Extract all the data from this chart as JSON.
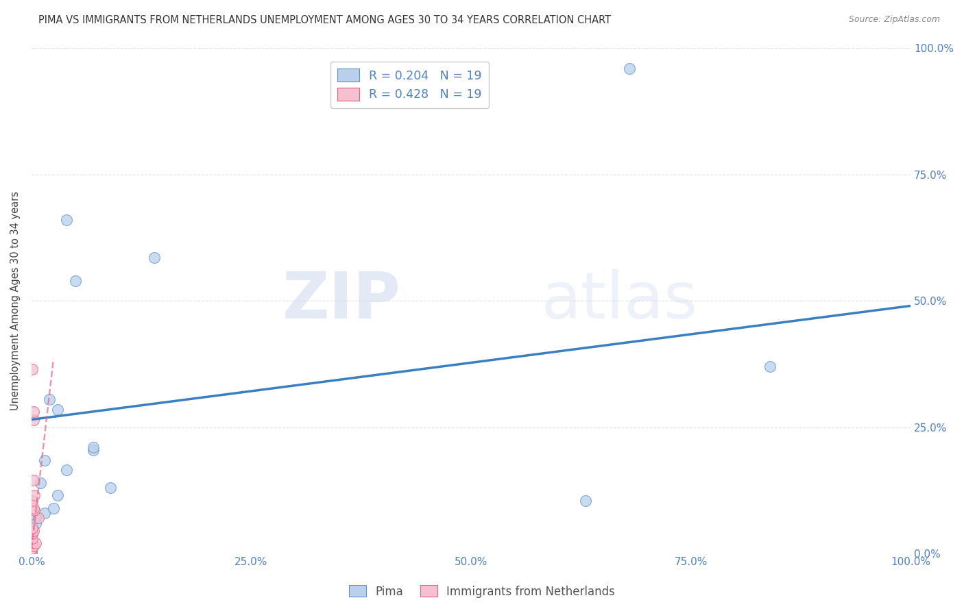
{
  "title": "PIMA VS IMMIGRANTS FROM NETHERLANDS UNEMPLOYMENT AMONG AGES 30 TO 34 YEARS CORRELATION CHART",
  "source": "Source: ZipAtlas.com",
  "ylabel": "Unemployment Among Ages 30 to 34 years",
  "xlim": [
    0.0,
    1.0
  ],
  "ylim": [
    0.0,
    1.0
  ],
  "xtick_labels": [
    "0.0%",
    "",
    "25.0%",
    "",
    "50.0%",
    "",
    "75.0%",
    "",
    "100.0%"
  ],
  "xtick_values": [
    0.0,
    0.125,
    0.25,
    0.375,
    0.5,
    0.625,
    0.75,
    0.875,
    1.0
  ],
  "ytick_values": [
    0.0,
    0.25,
    0.5,
    0.75,
    1.0
  ],
  "ytick_labels_right": [
    "0.0%",
    "25.0%",
    "50.0%",
    "75.0%",
    "100.0%"
  ],
  "watermark_zip": "ZIP",
  "watermark_atlas": "atlas",
  "legend_label_pima": "R = 0.204   N = 19",
  "legend_label_neth": "R = 0.428   N = 19",
  "bottom_label_pima": "Pima",
  "bottom_label_neth": "Immigrants from Netherlands",
  "pima_scatter_x": [
    0.04,
    0.02,
    0.03,
    0.68,
    0.07,
    0.05,
    0.14,
    0.005,
    0.01,
    0.015,
    0.07,
    0.09,
    0.015,
    0.84,
    0.63,
    0.04,
    0.03,
    0.025,
    0.005
  ],
  "pima_scatter_y": [
    0.66,
    0.305,
    0.285,
    0.96,
    0.205,
    0.54,
    0.585,
    0.07,
    0.14,
    0.185,
    0.21,
    0.13,
    0.08,
    0.37,
    0.105,
    0.165,
    0.115,
    0.09,
    0.06
  ],
  "netherlands_scatter_x": [
    0.0,
    0.0,
    0.0,
    0.002,
    0.0,
    0.005,
    0.001,
    0.001,
    0.002,
    0.001,
    0.008,
    0.003,
    0.002,
    0.001,
    0.003,
    0.002,
    0.002,
    0.002,
    0.001
  ],
  "netherlands_scatter_y": [
    0.0,
    0.005,
    0.01,
    0.015,
    0.02,
    0.02,
    0.03,
    0.04,
    0.045,
    0.05,
    0.07,
    0.085,
    0.09,
    0.105,
    0.115,
    0.145,
    0.265,
    0.28,
    0.365
  ],
  "pima_line_x": [
    0.0,
    1.0
  ],
  "pima_line_y": [
    0.265,
    0.49
  ],
  "netherlands_line_x": [
    0.0,
    0.025
  ],
  "netherlands_line_y": [
    0.01,
    0.385
  ],
  "pima_line_color": "#3a7fc1",
  "pima_scatter_face": "#b8d0ec",
  "pima_scatter_edge": "#6090c8",
  "netherlands_line_color": "#e06080",
  "netherlands_scatter_face": "#f5c0d0",
  "netherlands_scatter_edge": "#e06080",
  "background_color": "#ffffff",
  "grid_color": "#e0e0e0",
  "tick_color": "#5080c0",
  "title_color": "#333333",
  "title_fontsize": 10.5,
  "ylabel_fontsize": 10.5,
  "tick_fontsize": 11,
  "marker_size": 130,
  "marker_alpha": 0.75
}
